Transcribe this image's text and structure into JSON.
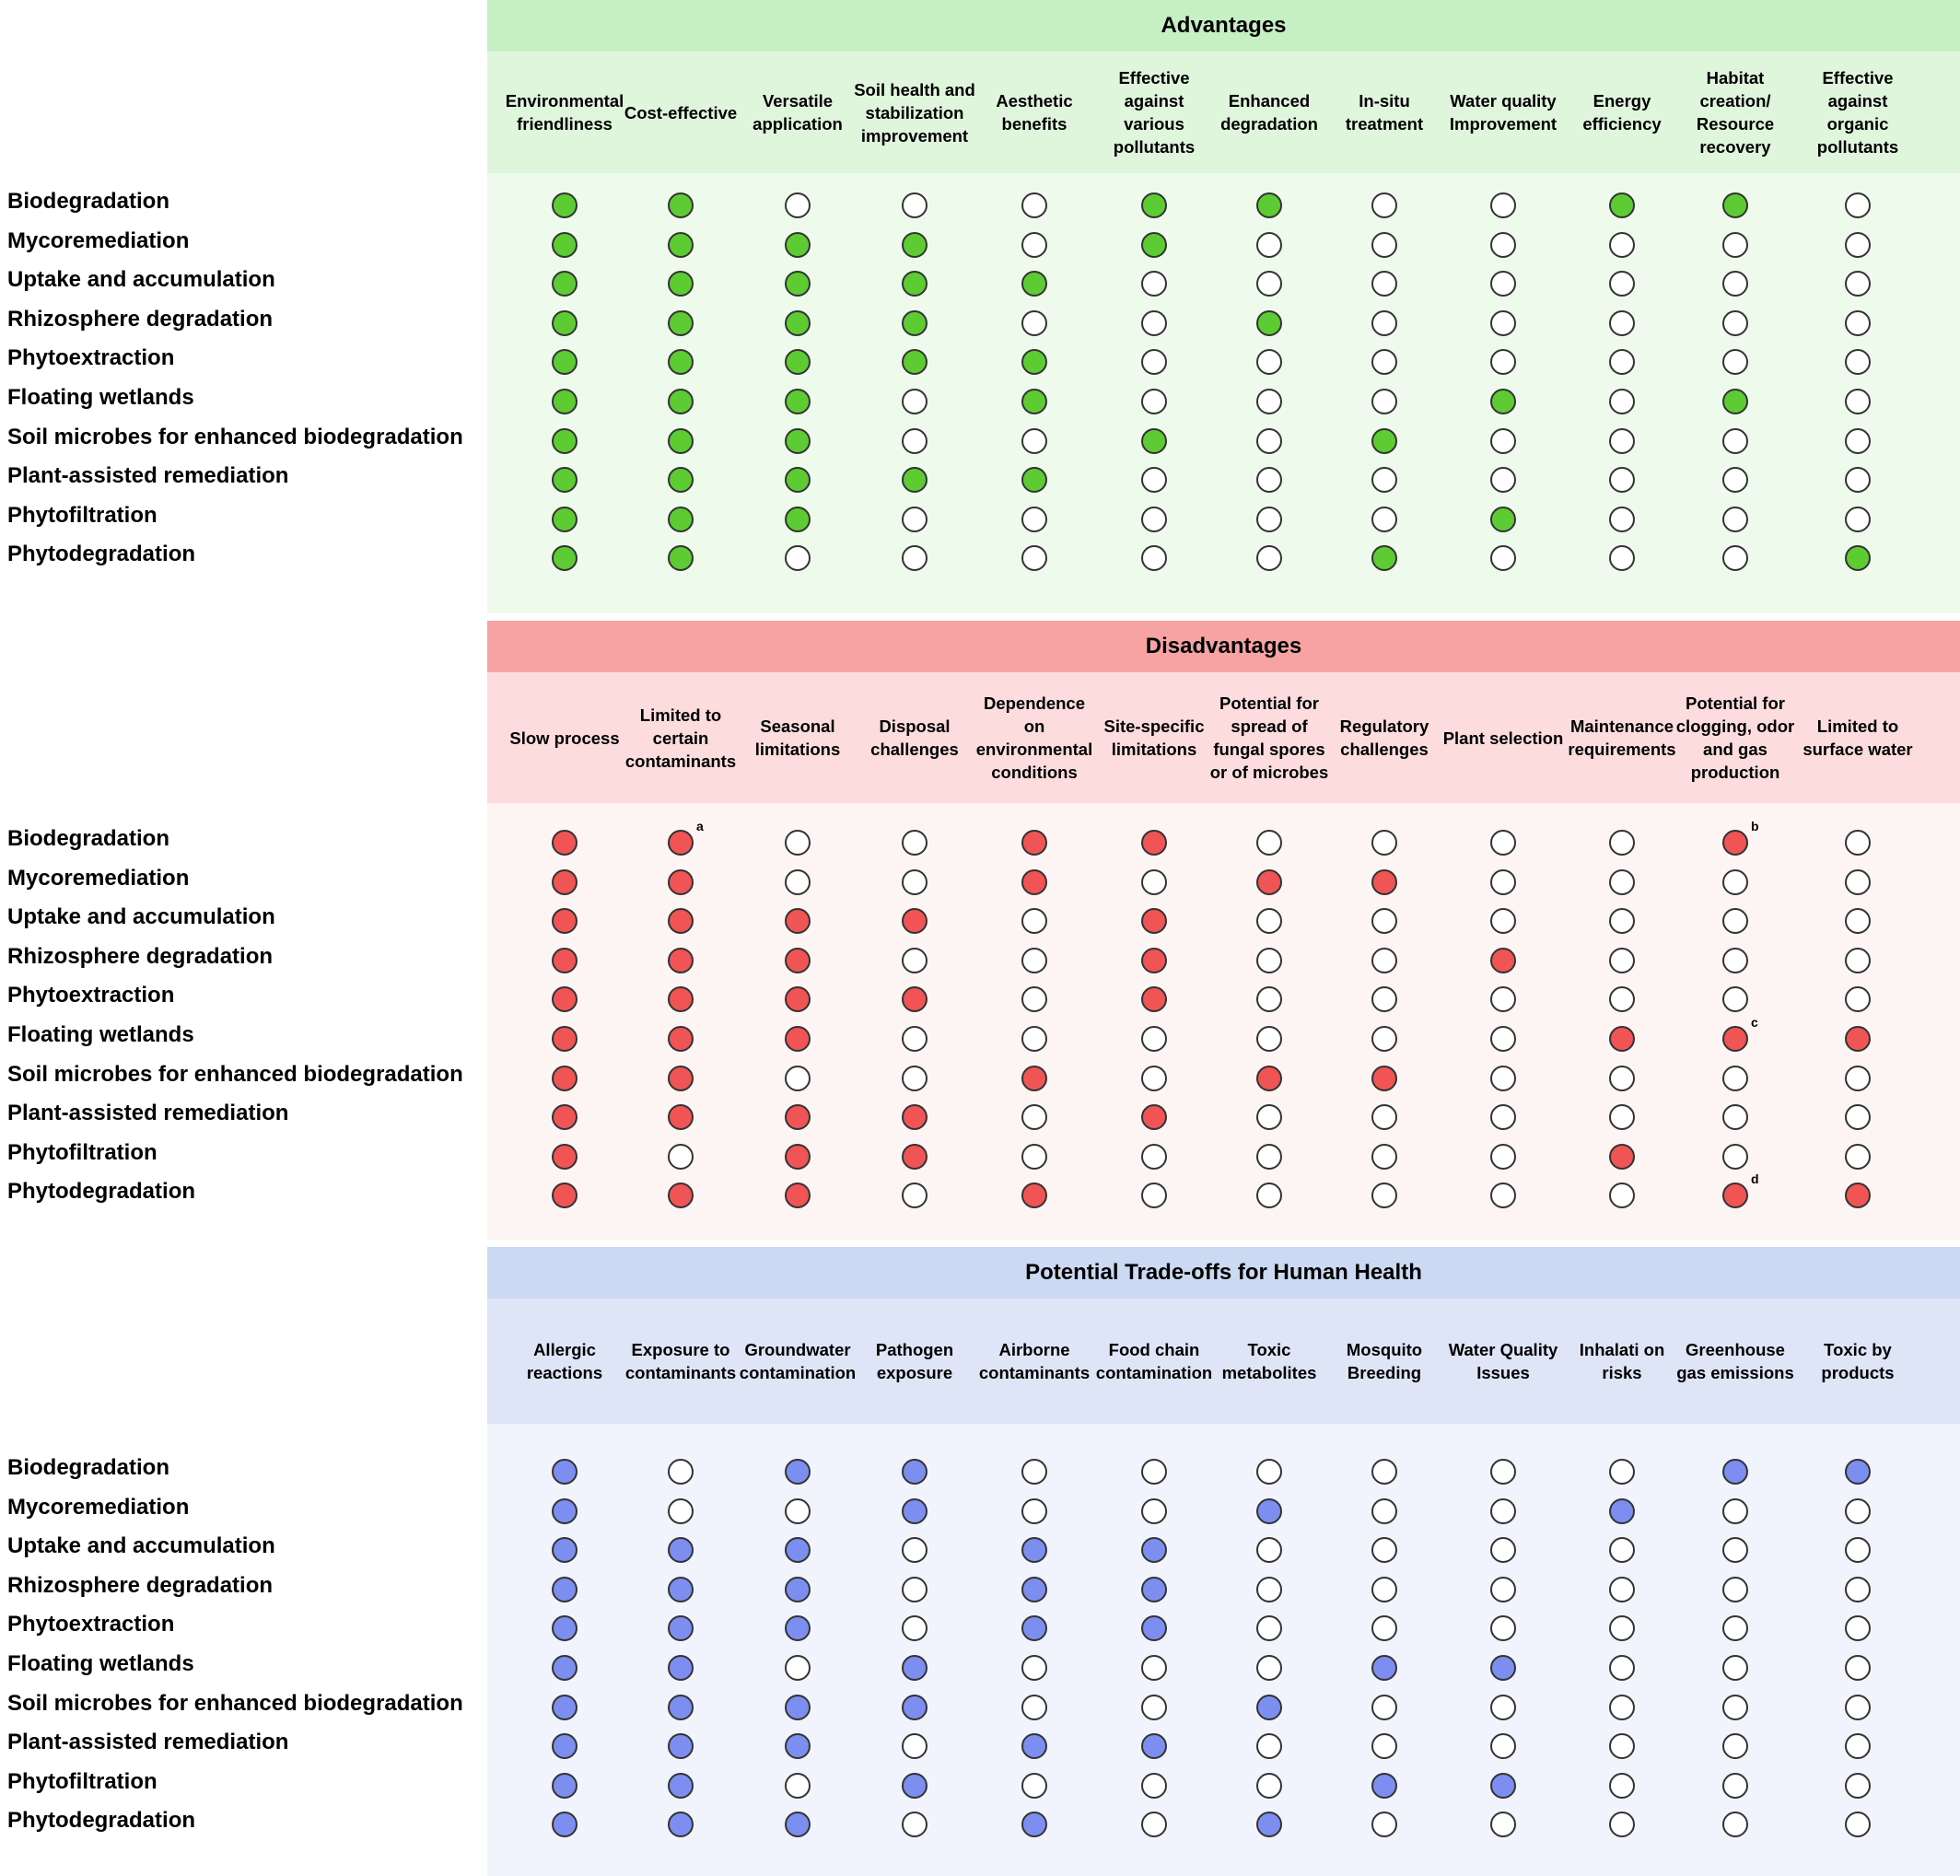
{
  "rows": [
    "Biodegradation",
    "Mycoremediation",
    "Uptake and accumulation",
    "Rhizosphere degradation",
    "Phytoextraction",
    "Floating wetlands",
    "Soil microbes for enhanced biodegradation",
    "Plant-assisted remediation",
    "Phytofiltration",
    "Phytodegradation"
  ],
  "sections": [
    {
      "id": "advantages",
      "title": "Advantages",
      "colors": {
        "title_bg": "#c6efc4",
        "head_bg": "#dff5dc",
        "body_bg": "#eefaec",
        "fill": "#5ccc32"
      },
      "columns": [
        "Environmental friendliness",
        "Cost-effective",
        "Versatile application",
        "Soil health and stabilization improvement",
        "Aesthetic benefits",
        "Effective against various pollutants",
        "Enhanced degradation",
        "In-situ treatment",
        "Water quality Improvement",
        "Energy efficiency",
        "Habitat creation/ Resource recovery",
        "Effective against organic pollutants"
      ],
      "matrix": [
        [
          1,
          1,
          0,
          0,
          0,
          1,
          1,
          0,
          0,
          1,
          1,
          0
        ],
        [
          1,
          1,
          1,
          1,
          0,
          1,
          0,
          0,
          0,
          0,
          0,
          0
        ],
        [
          1,
          1,
          1,
          1,
          1,
          0,
          0,
          0,
          0,
          0,
          0,
          0
        ],
        [
          1,
          1,
          1,
          1,
          0,
          0,
          1,
          0,
          0,
          0,
          0,
          0
        ],
        [
          1,
          1,
          1,
          1,
          1,
          0,
          0,
          0,
          0,
          0,
          0,
          0
        ],
        [
          1,
          1,
          1,
          0,
          1,
          0,
          0,
          0,
          1,
          0,
          1,
          0
        ],
        [
          1,
          1,
          1,
          0,
          0,
          1,
          0,
          1,
          0,
          0,
          0,
          0
        ],
        [
          1,
          1,
          1,
          1,
          1,
          0,
          0,
          0,
          0,
          0,
          0,
          0
        ],
        [
          1,
          1,
          1,
          0,
          0,
          0,
          0,
          0,
          1,
          0,
          0,
          0
        ],
        [
          1,
          1,
          0,
          0,
          0,
          0,
          0,
          1,
          0,
          0,
          0,
          1
        ]
      ],
      "notes": []
    },
    {
      "id": "disadvantages",
      "title": "Disadvantages",
      "colors": {
        "title_bg": "#f8a3a3",
        "head_bg": "#fcdcdc",
        "body_bg": "#fdf4f4",
        "fill": "#f05454"
      },
      "columns": [
        "Slow process",
        "Limited to certain contaminants",
        "Seasonal limitations",
        "Disposal challenges",
        "Dependence on environmental conditions",
        "Site-specific limitations",
        "Potential for spread of fungal spores or of microbes",
        "Regulatory challenges",
        "Plant selection",
        "Maintenance requirements",
        "Potential for clogging, odor and gas production",
        "Limited to surface water"
      ],
      "matrix": [
        [
          1,
          1,
          0,
          0,
          1,
          1,
          0,
          0,
          0,
          0,
          1,
          0
        ],
        [
          1,
          1,
          0,
          0,
          1,
          0,
          1,
          1,
          0,
          0,
          0,
          0
        ],
        [
          1,
          1,
          1,
          1,
          0,
          1,
          0,
          0,
          0,
          0,
          0,
          0
        ],
        [
          1,
          1,
          1,
          0,
          0,
          1,
          0,
          0,
          1,
          0,
          0,
          0
        ],
        [
          1,
          1,
          1,
          1,
          0,
          1,
          0,
          0,
          0,
          0,
          0,
          0
        ],
        [
          1,
          1,
          1,
          0,
          0,
          0,
          0,
          0,
          0,
          1,
          1,
          1
        ],
        [
          1,
          1,
          0,
          0,
          1,
          0,
          1,
          1,
          0,
          0,
          0,
          0
        ],
        [
          1,
          1,
          1,
          1,
          0,
          1,
          0,
          0,
          0,
          0,
          0,
          0
        ],
        [
          1,
          0,
          1,
          1,
          0,
          0,
          0,
          0,
          0,
          1,
          0,
          0
        ],
        [
          1,
          1,
          1,
          0,
          1,
          0,
          0,
          0,
          0,
          0,
          1,
          1
        ]
      ],
      "notes": [
        {
          "row": 0,
          "col": 1,
          "text": "a"
        },
        {
          "row": 0,
          "col": 10,
          "text": "b"
        },
        {
          "row": 5,
          "col": 10,
          "text": "c"
        },
        {
          "row": 9,
          "col": 10,
          "text": "d"
        }
      ]
    },
    {
      "id": "tradeoffs",
      "title": "Potential Trade-offs for Human Health",
      "colors": {
        "title_bg": "#ccd9f3",
        "head_bg": "#dde5f7",
        "body_bg": "#f1f4fc",
        "fill": "#7c8ef0"
      },
      "columns": [
        "Allergic reactions",
        "Exposure to contaminants",
        "Groundwater contamination",
        "Pathogen exposure",
        "Airborne contaminants",
        "Food chain contamination",
        "Toxic metabolites",
        "Mosquito Breeding",
        "Water Quality Issues",
        "Inhalati on risks",
        "Greenhouse gas emissions",
        "Toxic by products"
      ],
      "matrix": [
        [
          1,
          0,
          1,
          1,
          0,
          0,
          0,
          0,
          0,
          0,
          1,
          1
        ],
        [
          1,
          0,
          0,
          1,
          0,
          0,
          1,
          0,
          0,
          1,
          0,
          0
        ],
        [
          1,
          1,
          1,
          0,
          1,
          1,
          0,
          0,
          0,
          0,
          0,
          0
        ],
        [
          1,
          1,
          1,
          0,
          1,
          1,
          0,
          0,
          0,
          0,
          0,
          0
        ],
        [
          1,
          1,
          1,
          0,
          1,
          1,
          0,
          0,
          0,
          0,
          0,
          0
        ],
        [
          1,
          1,
          0,
          1,
          0,
          0,
          0,
          1,
          1,
          0,
          0,
          0
        ],
        [
          1,
          1,
          1,
          1,
          0,
          0,
          1,
          0,
          0,
          0,
          0,
          0
        ],
        [
          1,
          1,
          1,
          0,
          1,
          1,
          0,
          0,
          0,
          0,
          0,
          0
        ],
        [
          1,
          1,
          0,
          1,
          0,
          0,
          0,
          1,
          1,
          0,
          0,
          0
        ],
        [
          1,
          1,
          1,
          0,
          1,
          0,
          1,
          0,
          0,
          0,
          0,
          0
        ]
      ],
      "notes": []
    }
  ]
}
